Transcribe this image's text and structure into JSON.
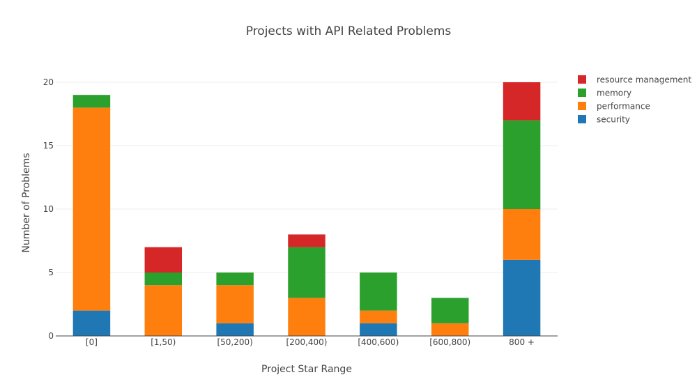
{
  "chart_data": {
    "type": "bar",
    "stacked": true,
    "title": "Projects with API Related Problems",
    "xlabel": "Project Star Range",
    "ylabel": "Number of Problems",
    "categories": [
      "[0]",
      "[1,50)",
      "[50,200)",
      "[200,400)",
      "[400,600)",
      "[600,800)",
      "800 +"
    ],
    "ylim": [
      0,
      20
    ],
    "yticks": [
      0,
      5,
      10,
      15,
      20
    ],
    "grid": true,
    "legend_position": "right",
    "series": [
      {
        "name": "security",
        "color": "#1f77b4",
        "values": [
          2,
          0,
          1,
          0,
          1,
          0,
          6
        ]
      },
      {
        "name": "performance",
        "color": "#ff7f0e",
        "values": [
          16,
          4,
          3,
          3,
          1,
          1,
          4
        ]
      },
      {
        "name": "memory",
        "color": "#2ca02c",
        "values": [
          1,
          1,
          1,
          4,
          3,
          2,
          7
        ]
      },
      {
        "name": "resource management",
        "color": "#d62728",
        "values": [
          0,
          2,
          0,
          1,
          0,
          0,
          3
        ]
      }
    ]
  }
}
